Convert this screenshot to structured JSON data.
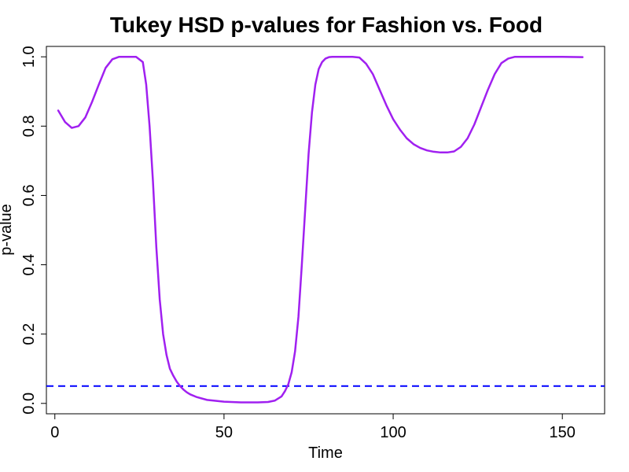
{
  "chart_data": {
    "type": "line",
    "title": "Tukey HSD p-values for Fashion vs. Food",
    "xlabel": "Time",
    "ylabel": "p-value",
    "xlim": [
      -2.5,
      162.5
    ],
    "ylim": [
      -0.03,
      1.03
    ],
    "xticks": [
      0,
      50,
      100,
      150
    ],
    "yticks": [
      0.0,
      0.2,
      0.4,
      0.6,
      0.8,
      1.0
    ],
    "xtick_labels": [
      "0",
      "50",
      "100",
      "150"
    ],
    "ytick_labels": [
      "0.0",
      "0.2",
      "0.4",
      "0.6",
      "0.8",
      "1.0"
    ],
    "grid": false,
    "series": [
      {
        "color": "#A020F0",
        "x": [
          1,
          3,
          5,
          7,
          9,
          11,
          13,
          15,
          17,
          19,
          21,
          23,
          24,
          26,
          27,
          28,
          29,
          30,
          31,
          32,
          33,
          34,
          35,
          36,
          37,
          38,
          39,
          40,
          42,
          45,
          50,
          55,
          60,
          63,
          65,
          67,
          68,
          69,
          70,
          71,
          72,
          73,
          74,
          75,
          76,
          77,
          78,
          79,
          80,
          81,
          82,
          84,
          86,
          88,
          90,
          92,
          94,
          96,
          98,
          100,
          102,
          104,
          106,
          108,
          110,
          112,
          114,
          116,
          118,
          120,
          122,
          124,
          126,
          128,
          130,
          132,
          134,
          136,
          140,
          145,
          150,
          156
        ],
        "values": [
          0.845,
          0.812,
          0.795,
          0.8,
          0.825,
          0.87,
          0.92,
          0.968,
          0.993,
          1.0,
          1.0,
          1.0,
          1.0,
          0.985,
          0.92,
          0.8,
          0.64,
          0.45,
          0.3,
          0.2,
          0.14,
          0.1,
          0.08,
          0.063,
          0.05,
          0.04,
          0.032,
          0.026,
          0.018,
          0.01,
          0.005,
          0.003,
          0.003,
          0.004,
          0.008,
          0.02,
          0.035,
          0.055,
          0.09,
          0.15,
          0.25,
          0.4,
          0.56,
          0.72,
          0.84,
          0.92,
          0.965,
          0.985,
          0.995,
          0.999,
          1.0,
          1.0,
          1.0,
          1.0,
          0.998,
          0.98,
          0.95,
          0.905,
          0.86,
          0.82,
          0.79,
          0.765,
          0.748,
          0.737,
          0.73,
          0.726,
          0.724,
          0.724,
          0.727,
          0.74,
          0.765,
          0.805,
          0.855,
          0.905,
          0.95,
          0.982,
          0.995,
          1.0,
          1.0,
          1.0,
          1.0,
          0.999
        ]
      }
    ],
    "reference_line": {
      "y": 0.05,
      "style": "dashed",
      "color": "#0000FF"
    },
    "line_color": "#A020F0",
    "ref_color": "#0000FF"
  }
}
